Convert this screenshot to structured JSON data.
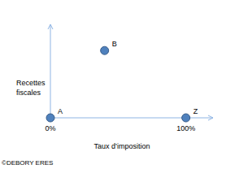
{
  "chart_data": {
    "type": "scatter",
    "y_label": "Recettes fiscales",
    "x_label": "Taux d’imposition",
    "x": [
      0,
      40,
      100
    ],
    "values": [
      0,
      72,
      0
    ],
    "point_labels": [
      "A",
      "B",
      "Z"
    ],
    "xlim": [
      0,
      120
    ],
    "ylim": [
      0,
      100
    ],
    "xticks": [
      {
        "value": 0,
        "label": "0%"
      },
      {
        "value": 100,
        "label": "100%"
      }
    ],
    "yticks": [],
    "tick_labels": "x",
    "grid": false,
    "color": "#4f81bd",
    "marker": "circle",
    "copyright": "©DEBORY ERES"
  }
}
